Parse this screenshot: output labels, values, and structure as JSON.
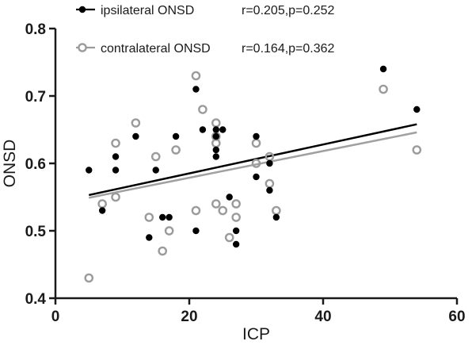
{
  "chart_data": {
    "type": "scatter",
    "title": "",
    "xlabel": "ICP",
    "ylabel": "ONSD",
    "xlim": [
      0,
      60
    ],
    "ylim": [
      0.4,
      0.8
    ],
    "xticks": [
      0,
      20,
      40,
      60
    ],
    "yticks": [
      0.4,
      0.5,
      0.6,
      0.7,
      0.8
    ],
    "xtick_labels": [
      "0",
      "20",
      "40",
      "60"
    ],
    "ytick_labels": [
      "0.4",
      "0.5",
      "0.6",
      "0.7",
      "0.8"
    ],
    "grid": false,
    "legend_position": "top-left",
    "series": [
      {
        "name": "ipsilateral ONSD",
        "marker": "filled-circle",
        "color": "#000000",
        "annotation": "r=0.205,p=0.252",
        "fit_line": {
          "x": [
            5,
            54
          ],
          "y": [
            0.553,
            0.658
          ],
          "color": "#000000"
        },
        "points": [
          {
            "x": 5,
            "y": 0.59
          },
          {
            "x": 7,
            "y": 0.53
          },
          {
            "x": 9,
            "y": 0.61
          },
          {
            "x": 9,
            "y": 0.59
          },
          {
            "x": 12,
            "y": 0.64
          },
          {
            "x": 14,
            "y": 0.49
          },
          {
            "x": 15,
            "y": 0.59
          },
          {
            "x": 16,
            "y": 0.52
          },
          {
            "x": 17,
            "y": 0.52
          },
          {
            "x": 18,
            "y": 0.64
          },
          {
            "x": 21,
            "y": 0.71
          },
          {
            "x": 21,
            "y": 0.5
          },
          {
            "x": 22,
            "y": 0.65
          },
          {
            "x": 24,
            "y": 0.65
          },
          {
            "x": 24,
            "y": 0.64
          },
          {
            "x": 24,
            "y": 0.62
          },
          {
            "x": 24,
            "y": 0.61
          },
          {
            "x": 25,
            "y": 0.65
          },
          {
            "x": 26,
            "y": 0.55
          },
          {
            "x": 27,
            "y": 0.5
          },
          {
            "x": 27,
            "y": 0.48
          },
          {
            "x": 30,
            "y": 0.64
          },
          {
            "x": 30,
            "y": 0.58
          },
          {
            "x": 32,
            "y": 0.6
          },
          {
            "x": 32,
            "y": 0.56
          },
          {
            "x": 33,
            "y": 0.52
          },
          {
            "x": 49,
            "y": 0.74
          },
          {
            "x": 54,
            "y": 0.68
          }
        ]
      },
      {
        "name": "contralateral ONSD",
        "marker": "open-circle",
        "color": "#9b9b9b",
        "annotation": "r=0.164,p=0.362",
        "fit_line": {
          "x": [
            5,
            54
          ],
          "y": [
            0.549,
            0.646
          ],
          "color": "#a0a0a0"
        },
        "points": [
          {
            "x": 5,
            "y": 0.43
          },
          {
            "x": 7,
            "y": 0.54
          },
          {
            "x": 9,
            "y": 0.63
          },
          {
            "x": 9,
            "y": 0.55
          },
          {
            "x": 12,
            "y": 0.66
          },
          {
            "x": 14,
            "y": 0.52
          },
          {
            "x": 15,
            "y": 0.61
          },
          {
            "x": 16,
            "y": 0.47
          },
          {
            "x": 17,
            "y": 0.5
          },
          {
            "x": 18,
            "y": 0.62
          },
          {
            "x": 21,
            "y": 0.73
          },
          {
            "x": 21,
            "y": 0.53
          },
          {
            "x": 22,
            "y": 0.68
          },
          {
            "x": 24,
            "y": 0.66
          },
          {
            "x": 24,
            "y": 0.64
          },
          {
            "x": 24,
            "y": 0.63
          },
          {
            "x": 24,
            "y": 0.54
          },
          {
            "x": 25,
            "y": 0.53
          },
          {
            "x": 26,
            "y": 0.49
          },
          {
            "x": 27,
            "y": 0.54
          },
          {
            "x": 27,
            "y": 0.52
          },
          {
            "x": 30,
            "y": 0.63
          },
          {
            "x": 30,
            "y": 0.6
          },
          {
            "x": 32,
            "y": 0.61
          },
          {
            "x": 32,
            "y": 0.57
          },
          {
            "x": 33,
            "y": 0.53
          },
          {
            "x": 49,
            "y": 0.71
          },
          {
            "x": 54,
            "y": 0.62
          }
        ]
      }
    ]
  }
}
